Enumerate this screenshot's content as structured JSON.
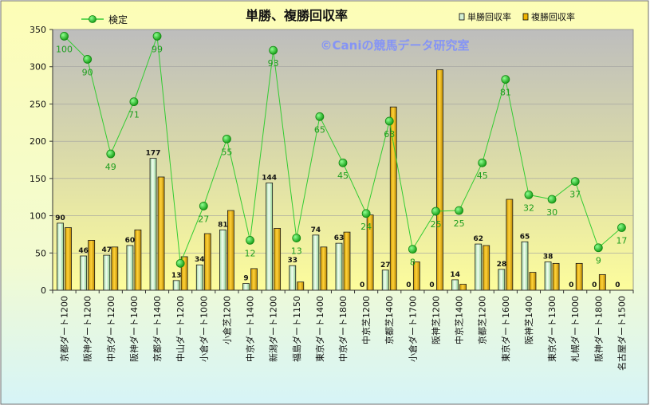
{
  "chart_data": {
    "type": "bar",
    "title": "単勝、複勝回収率",
    "watermark": "©Caniの競馬データ研究室",
    "ylim": [
      0,
      350
    ],
    "yticks": [
      0,
      50,
      100,
      150,
      200,
      250,
      300,
      350
    ],
    "grid": true,
    "legend_position": "top",
    "categories": [
      "京都ダート1200",
      "阪神ダート1200",
      "中京ダート1200",
      "阪神ダート1400",
      "京都ダート1400",
      "中山ダート1200",
      "小倉ダート1000",
      "小倉芝1200",
      "中京ダート1400",
      "新潟ダート1200",
      "福島ダート1150",
      "東京ダート1400",
      "中京ダート1800",
      "中京芝1200",
      "京都芝1400",
      "小倉ダート1700",
      "阪神芝1200",
      "中京芝1400",
      "京都芝1200",
      "東京ダート1600",
      "阪神芝1400",
      "東京ダート1300",
      "札幌ダート1000",
      "阪神ダート1800",
      "名古屋ダート1500"
    ],
    "series": [
      {
        "name": "単勝回収率",
        "type": "bar",
        "color": "#d4f0d4",
        "values": [
          90,
          46,
          47,
          60,
          177,
          13,
          34,
          81,
          9,
          144,
          33,
          74,
          63,
          0,
          27,
          0,
          0,
          14,
          62,
          28,
          65,
          38,
          0,
          0,
          0
        ],
        "labels": [
          "90",
          "46",
          "47",
          "60",
          "177",
          "13",
          "34",
          "81",
          "9",
          "144",
          "33",
          "74",
          "63",
          "0",
          "27",
          "0",
          "0",
          "14",
          "62",
          "28",
          "65",
          "38",
          "0",
          "0",
          "0"
        ]
      },
      {
        "name": "複勝回収率",
        "type": "bar",
        "color": "#f0b400",
        "values": [
          84,
          67,
          58,
          81,
          152,
          45,
          76,
          107,
          29,
          83,
          11,
          58,
          78,
          101,
          246,
          38,
          296,
          8,
          60,
          122,
          24,
          36,
          36,
          21,
          0
        ]
      },
      {
        "name": "検定",
        "type": "line",
        "color": "#33cc33",
        "values": [
          341,
          310,
          183,
          253,
          341,
          36,
          113,
          203,
          67,
          322,
          70,
          233,
          171,
          103,
          227,
          55,
          106,
          107,
          171,
          283,
          128,
          122,
          146,
          57,
          84
        ],
        "labels": [
          "100",
          "90",
          "49",
          "71",
          "99",
          "",
          "27",
          "55",
          "12",
          "93",
          "13",
          "65",
          "45",
          "24",
          "63",
          "8",
          "25",
          "25",
          "45",
          "81",
          "32",
          "30",
          "37",
          "9",
          "17"
        ]
      }
    ]
  }
}
